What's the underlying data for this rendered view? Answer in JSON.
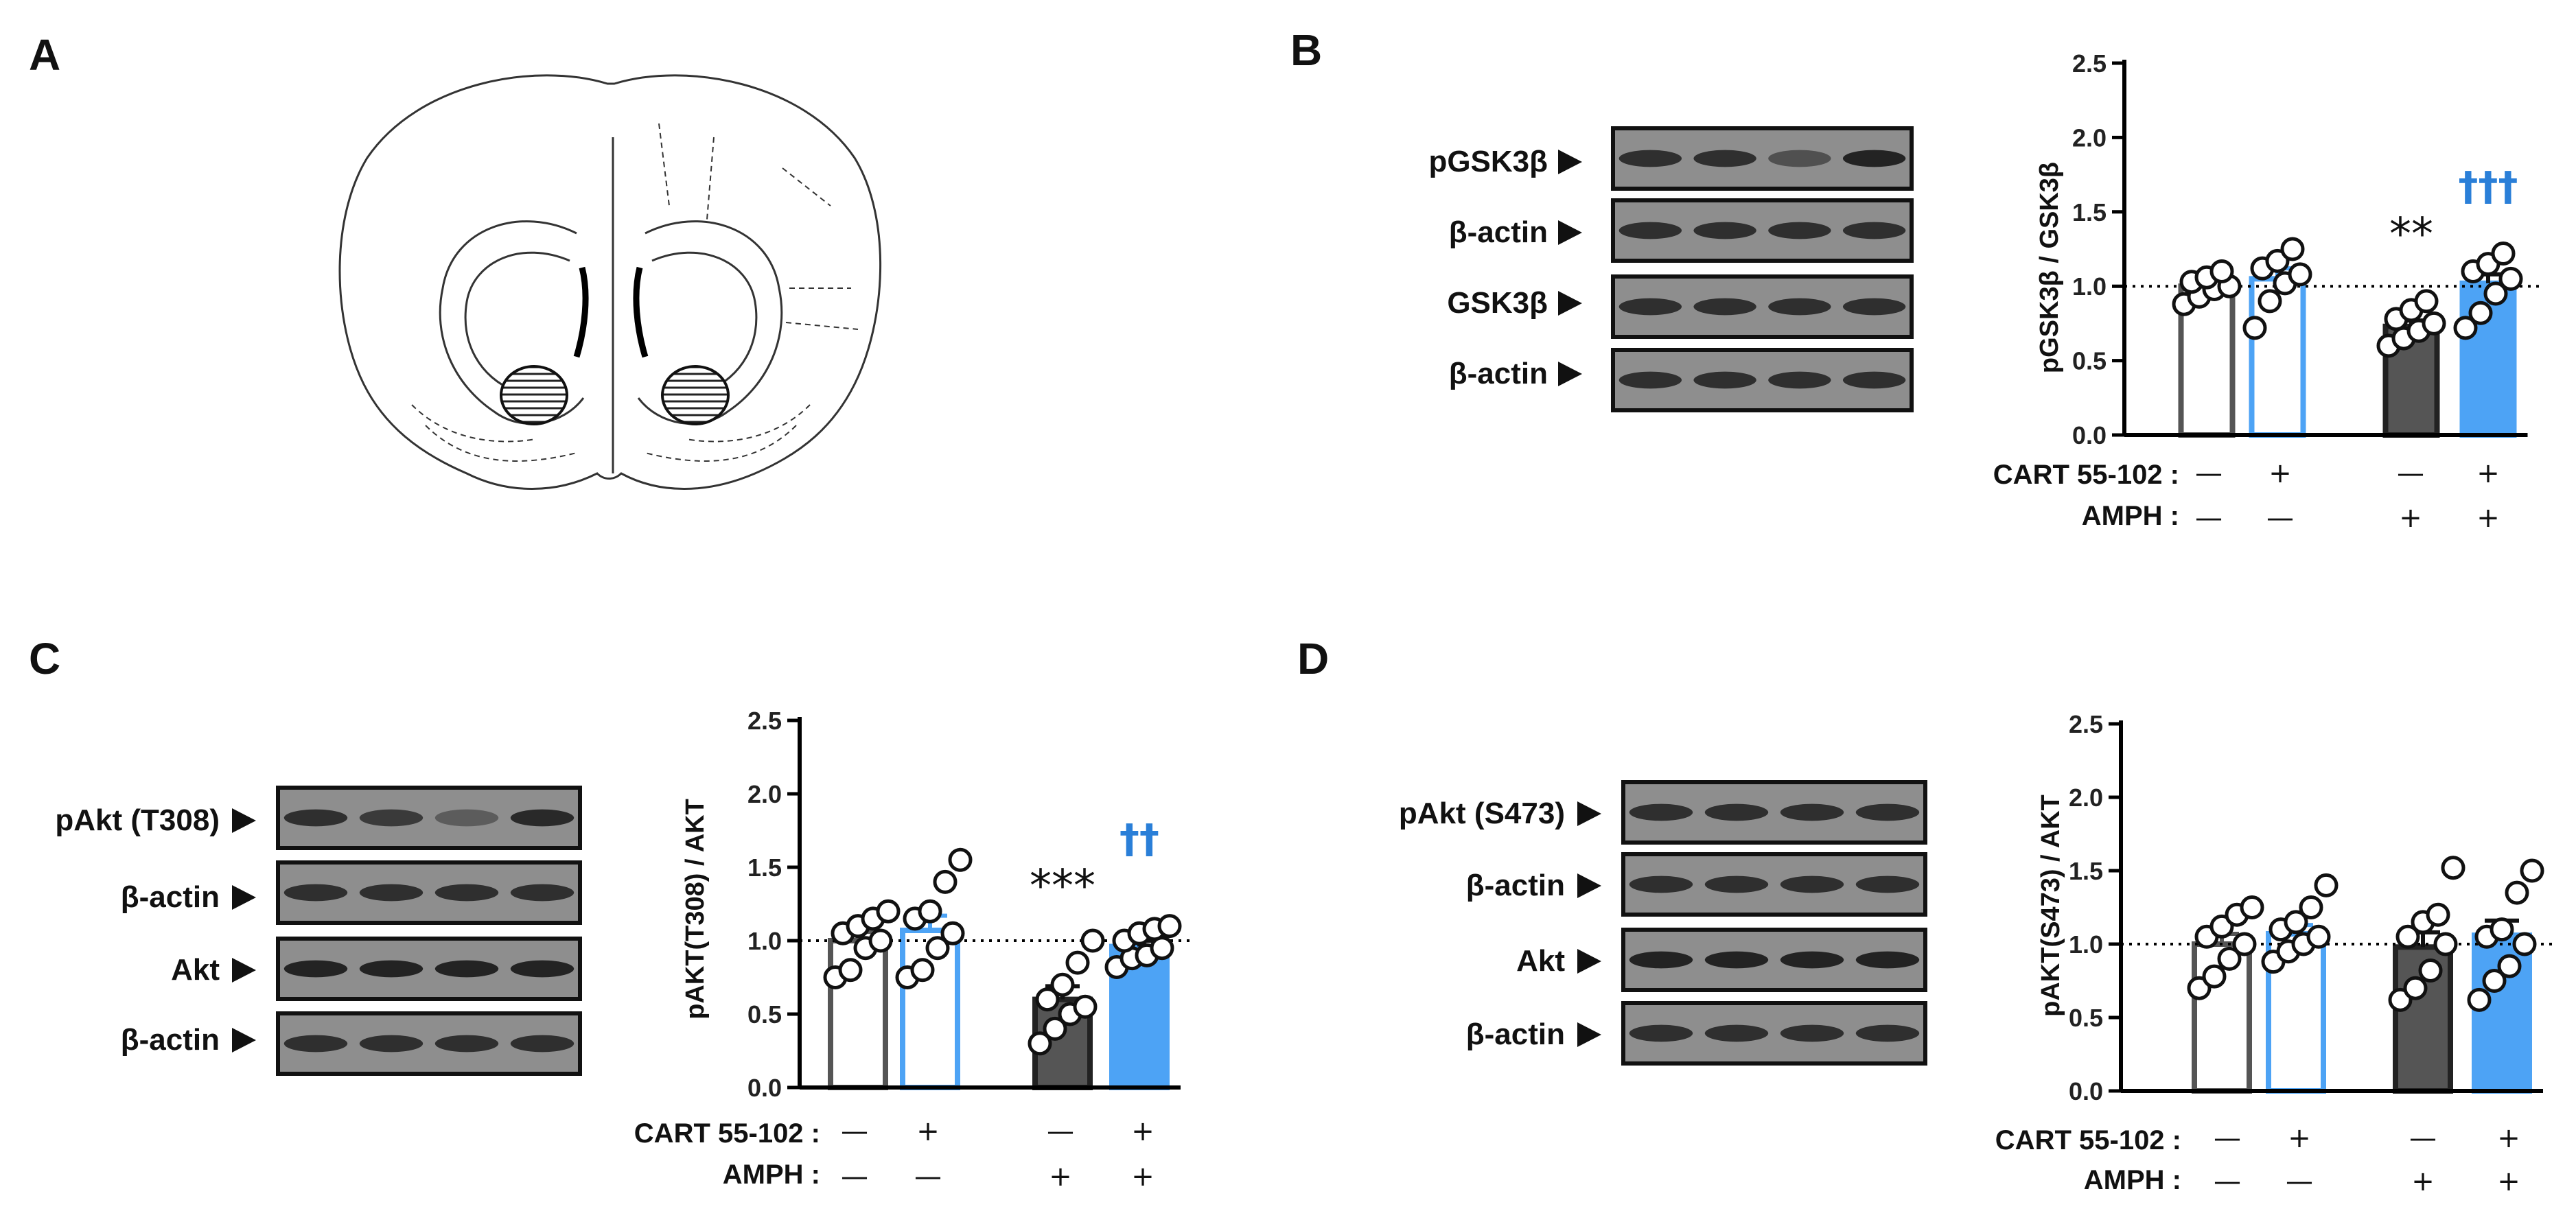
{
  "panels": {
    "A": {
      "label": "A"
    },
    "B": {
      "label": "B",
      "blot_labels": [
        "pGSK3β",
        "β-actin",
        "GSK3β",
        "β-actin"
      ]
    },
    "C": {
      "label": "C",
      "blot_labels": [
        "pAkt (T308)",
        "β-actin",
        "Akt",
        "β-actin"
      ]
    },
    "D": {
      "label": "D",
      "blot_labels": [
        "pAkt (S473)",
        "β-actin",
        "Akt",
        "β-actin"
      ]
    }
  },
  "conditions": {
    "cart_label": "CART 55-102 :",
    "amph_label": "AMPH :",
    "cart_values": [
      "—",
      "+",
      "—",
      "+"
    ],
    "amph_values": [
      "—",
      "—",
      "+",
      "+"
    ]
  },
  "colors": {
    "saline": "#ffffff",
    "cart": "#4da3f5",
    "amph": "#555555",
    "bar_outline_cart": "#4da3f5",
    "bar_outline_saline": "#555555",
    "dagger": "#2a7fd8"
  },
  "chart_data": [
    {
      "panel": "B",
      "type": "bar",
      "ylabel": "pGSK3β / GSK3β",
      "ylim": [
        0,
        2.5
      ],
      "yticks": [
        "0.0",
        "0.5",
        "1.0",
        "1.5",
        "2.0",
        "2.5"
      ],
      "reference_line": 1.0,
      "groups": [
        {
          "mean": 1.0,
          "sem": 0.04,
          "points": [
            0.88,
            0.93,
            0.98,
            1.0,
            1.03,
            1.06,
            1.1
          ]
        },
        {
          "mean": 1.05,
          "sem": 0.07,
          "points": [
            0.72,
            0.9,
            1.02,
            1.08,
            1.12,
            1.17,
            1.25
          ]
        },
        {
          "mean": 0.73,
          "sem": 0.04,
          "points": [
            0.6,
            0.65,
            0.7,
            0.75,
            0.78,
            0.84,
            0.9
          ]
        },
        {
          "mean": 1.02,
          "sem": 0.06,
          "points": [
            0.72,
            0.82,
            0.95,
            1.05,
            1.1,
            1.15,
            1.22
          ]
        }
      ],
      "annotations": [
        {
          "group": 2,
          "text": "**",
          "y": 1.25
        },
        {
          "group": 3,
          "text": "†††",
          "y": 1.58
        }
      ]
    },
    {
      "panel": "C",
      "type": "bar",
      "ylabel": "pAKT(T308) / AKT",
      "ylim": [
        0,
        2.5
      ],
      "yticks": [
        "0.0",
        "0.5",
        "1.0",
        "1.5",
        "2.0",
        "2.5"
      ],
      "reference_line": 1.0,
      "groups": [
        {
          "mean": 1.0,
          "sem": 0.06,
          "points": [
            0.75,
            0.8,
            0.95,
            1.0,
            1.05,
            1.1,
            1.15,
            1.2
          ]
        },
        {
          "mean": 1.07,
          "sem": 0.1,
          "points": [
            0.75,
            0.8,
            0.95,
            1.05,
            1.15,
            1.2,
            1.4,
            1.55
          ]
        },
        {
          "mean": 0.6,
          "sem": 0.09,
          "points": [
            0.3,
            0.4,
            0.5,
            0.55,
            0.6,
            0.7,
            0.85,
            1.0
          ]
        },
        {
          "mean": 0.96,
          "sem": 0.04,
          "points": [
            0.82,
            0.88,
            0.9,
            0.95,
            1.0,
            1.05,
            1.08,
            1.1
          ]
        }
      ],
      "annotations": [
        {
          "group": 2,
          "text": "***",
          "y": 1.27
        },
        {
          "group": 3,
          "text": "††",
          "y": 1.6
        }
      ]
    },
    {
      "panel": "D",
      "type": "bar",
      "ylabel": "pAKT(S473) / AKT",
      "ylim": [
        0,
        2.5
      ],
      "yticks": [
        "0.0",
        "0.5",
        "1.0",
        "1.5",
        "2.0",
        "2.5"
      ],
      "reference_line": 1.0,
      "groups": [
        {
          "mean": 1.0,
          "sem": 0.07,
          "points": [
            0.7,
            0.78,
            0.9,
            1.0,
            1.05,
            1.12,
            1.2,
            1.25
          ]
        },
        {
          "mean": 1.07,
          "sem": 0.06,
          "points": [
            0.88,
            0.95,
            1.0,
            1.05,
            1.1,
            1.15,
            1.25,
            1.4
          ]
        },
        {
          "mean": 0.98,
          "sem": 0.1,
          "points": [
            0.62,
            0.7,
            0.82,
            1.0,
            1.05,
            1.15,
            1.2,
            1.52
          ]
        },
        {
          "mean": 1.06,
          "sem": 0.1,
          "points": [
            0.62,
            0.75,
            0.85,
            1.0,
            1.05,
            1.1,
            1.35,
            1.5
          ]
        }
      ],
      "annotations": []
    }
  ]
}
